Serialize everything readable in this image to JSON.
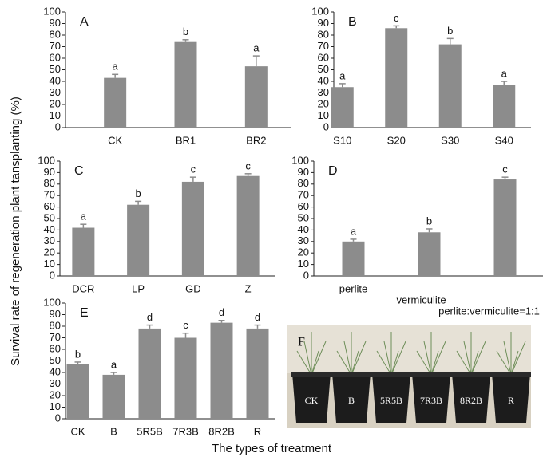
{
  "chart_data": [
    {
      "type": "bar",
      "panel": "A",
      "categories": [
        "CK",
        "BR1",
        "BR2"
      ],
      "values": [
        43,
        74,
        53
      ],
      "errors": [
        3,
        2,
        9
      ],
      "annotations": [
        "a",
        "b",
        "a"
      ],
      "color": "#8c8c8c",
      "ylim": [
        0,
        100
      ],
      "yticks": [
        0,
        10,
        20,
        30,
        40,
        50,
        60,
        70,
        80,
        90,
        100
      ]
    },
    {
      "type": "bar",
      "panel": "B",
      "categories": [
        "S10",
        "S20",
        "S30",
        "S40"
      ],
      "values": [
        35,
        86,
        72,
        37
      ],
      "errors": [
        3,
        2,
        5,
        3
      ],
      "annotations": [
        "a",
        "c",
        "b",
        "a"
      ],
      "color": "#8c8c8c",
      "ylim": [
        0,
        100
      ],
      "yticks": [
        0,
        10,
        20,
        30,
        40,
        50,
        60,
        70,
        80,
        90,
        100
      ]
    },
    {
      "type": "bar",
      "panel": "C",
      "categories": [
        "DCR",
        "LP",
        "GD",
        "Z"
      ],
      "values": [
        42,
        62,
        82,
        87
      ],
      "errors": [
        3,
        3,
        4,
        2
      ],
      "annotations": [
        "a",
        "b",
        "c",
        "c"
      ],
      "color": "#8c8c8c",
      "ylim": [
        0,
        100
      ],
      "yticks": [
        0,
        10,
        20,
        30,
        40,
        50,
        60,
        70,
        80,
        90,
        100
      ]
    },
    {
      "type": "bar",
      "panel": "D",
      "categories": [
        "perlite",
        "vermiculite",
        "perlite:vermiculite=1:1"
      ],
      "values": [
        30,
        38,
        84
      ],
      "errors": [
        2,
        3,
        2
      ],
      "annotations": [
        "a",
        "b",
        "c"
      ],
      "color": "#8c8c8c",
      "ylim": [
        0,
        100
      ],
      "yticks": [
        0,
        10,
        20,
        30,
        40,
        50,
        60,
        70,
        80,
        90,
        100
      ]
    },
    {
      "type": "bar",
      "panel": "E",
      "categories": [
        "CK",
        "B",
        "5R5B",
        "7R3B",
        "8R2B",
        "R"
      ],
      "values": [
        47,
        38,
        78,
        70,
        83,
        78
      ],
      "errors": [
        2,
        2,
        3,
        4,
        2,
        3
      ],
      "annotations": [
        "b",
        "a",
        "d",
        "c",
        "d",
        "d"
      ],
      "color": "#8c8c8c",
      "ylim": [
        0,
        100
      ],
      "yticks": [
        0,
        10,
        20,
        30,
        40,
        50,
        60,
        70,
        80,
        90,
        100
      ]
    }
  ],
  "figure": {
    "y_axis_label": "Survival rate of regeneration plant tansplanting (%)",
    "x_axis_label": "The types of treatment",
    "photo": {
      "panel": "F",
      "pot_labels": [
        "CK",
        "B",
        "5R5B",
        "7R3B",
        "8R2B",
        "R"
      ]
    }
  }
}
